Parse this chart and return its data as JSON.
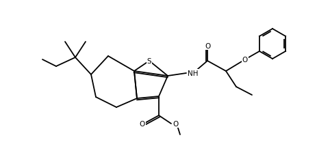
{
  "figsize": [
    4.82,
    2.28
  ],
  "dpi": 100,
  "bg": "#ffffff",
  "lc": "#000000",
  "lw": 1.3,
  "atoms": {
    "S": "S",
    "O1": "O",
    "O2": "O",
    "O3": "O",
    "N": "NH"
  }
}
